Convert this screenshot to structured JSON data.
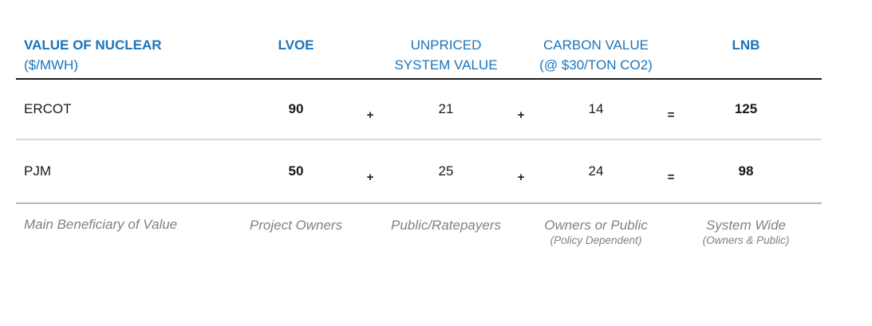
{
  "palette": {
    "accent_blue": "#1b74bb",
    "text_black": "#1a1a1a",
    "muted_gray": "#7f8184",
    "rule_black": "#1a1a1a",
    "rule_light": "#d9d9d9",
    "rule_medium": "#b5b5b5"
  },
  "header": {
    "title": "VALUE OF NUCLEAR",
    "subtitle": "($/MWH)",
    "col_lvoe": "LVOE",
    "col_unpriced_line1": "UNPRICED",
    "col_unpriced_line2": "SYSTEM VALUE",
    "col_carbon_line1": "CARBON VALUE",
    "col_carbon_line2": "(@ $30/TON CO2)",
    "col_lnb": "LNB"
  },
  "rows": [
    {
      "label": "ERCOT",
      "lvoe": "90",
      "op1": "+",
      "unpriced": "21",
      "op2": "+",
      "carbon": "14",
      "op3": "=",
      "lnb": "125"
    },
    {
      "label": "PJM",
      "lvoe": "50",
      "op1": "+",
      "unpriced": "25",
      "op2": "+",
      "carbon": "24",
      "op3": "=",
      "lnb": "98"
    }
  ],
  "footer": {
    "label": "Main Beneficiary of Value",
    "lvoe_main": "Project Owners",
    "unpriced_main": "Public/Ratepayers",
    "carbon_main": "Owners or Public",
    "carbon_sub": "(Policy Dependent)",
    "lnb_main": "System Wide",
    "lnb_sub": "(Owners & Public)"
  },
  "chart_data": {
    "type": "table",
    "title": "VALUE OF NUCLEAR ($/MWH)",
    "columns": [
      "LVOE",
      "UNPRICED SYSTEM VALUE",
      "CARBON VALUE (@ $30/TON CO2)",
      "LNB"
    ],
    "rows": [
      {
        "region": "ERCOT",
        "lvoe": 90,
        "unpriced_system_value": 21,
        "carbon_value": 14,
        "lnb": 125
      },
      {
        "region": "PJM",
        "lvoe": 50,
        "unpriced_system_value": 25,
        "carbon_value": 24,
        "lnb": 98
      }
    ],
    "formula": "LVOE + UNPRICED SYSTEM VALUE + CARBON VALUE = LNB",
    "main_beneficiary_of_value": {
      "lvoe": "Project Owners",
      "unpriced_system_value": "Public/Ratepayers",
      "carbon_value": "Owners or Public (Policy Dependent)",
      "lnb": "System Wide (Owners & Public)"
    }
  }
}
